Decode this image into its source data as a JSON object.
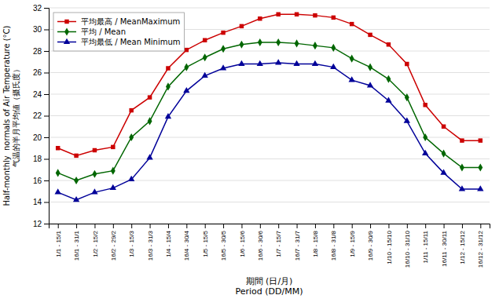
{
  "chart_data": {
    "type": "line",
    "categories": [
      "1/1 - 15/1",
      "16/1 - 31/1",
      "1/2 - 15/2",
      "16/2 - 29/2",
      "1/3 - 15/3",
      "16/3 - 31/3",
      "1/4 - 15/4",
      "16/4 - 30/4",
      "1/5 - 15/5",
      "16/5 - 30/5",
      "1/6 - 15/6",
      "16/6 - 30/6",
      "1/7 - 15/7",
      "16/7 - 31/7",
      "1/8 - 15/8",
      "16/8 - 31/8",
      "1/9 - 15/9",
      "16/9 - 30/9",
      "1/10 - 15/10",
      "16/10 - 31/10",
      "1/11 - 15/11",
      "16/11 - 30/11",
      "1/12 - 15/12",
      "16/12 - 31/12"
    ],
    "series": [
      {
        "name": "平均最高 / MeanMaximum",
        "color": "#cc0000",
        "marker": "square",
        "values": [
          19.0,
          18.3,
          18.8,
          19.1,
          22.5,
          23.7,
          26.4,
          28.1,
          29.0,
          29.7,
          30.3,
          31.0,
          31.4,
          31.4,
          31.3,
          31.1,
          30.5,
          29.5,
          28.6,
          26.8,
          23.0,
          21.0,
          19.7,
          19.7
        ]
      },
      {
        "name": "平均 / Mean",
        "color": "#006600",
        "marker": "diamond",
        "values": [
          16.7,
          16.0,
          16.6,
          16.9,
          20.0,
          21.5,
          24.7,
          26.5,
          27.4,
          28.2,
          28.6,
          28.8,
          28.8,
          28.7,
          28.5,
          28.3,
          27.3,
          26.5,
          25.4,
          23.7,
          20.0,
          18.5,
          17.2,
          17.2
        ]
      },
      {
        "name": "平均最低 / Mean Minimum",
        "color": "#000099",
        "marker": "triangle",
        "values": [
          14.9,
          14.2,
          14.9,
          15.3,
          16.1,
          18.1,
          21.9,
          24.3,
          25.7,
          26.4,
          26.8,
          26.8,
          26.9,
          26.8,
          26.8,
          26.5,
          25.3,
          24.8,
          23.4,
          21.5,
          18.5,
          16.7,
          15.2,
          15.2
        ]
      }
    ],
    "xlabel": "期間 (日/月)\nPeriod (DD/MM)",
    "ylabel": "Half-monthly  normals of Air Temperature (°C)\n气温的半月平均値（摄氏度）",
    "ylim": [
      12,
      32
    ],
    "yticks": [
      12,
      14,
      16,
      18,
      20,
      22,
      24,
      26,
      28,
      30,
      32
    ],
    "grid": true,
    "legend": "upper left"
  }
}
